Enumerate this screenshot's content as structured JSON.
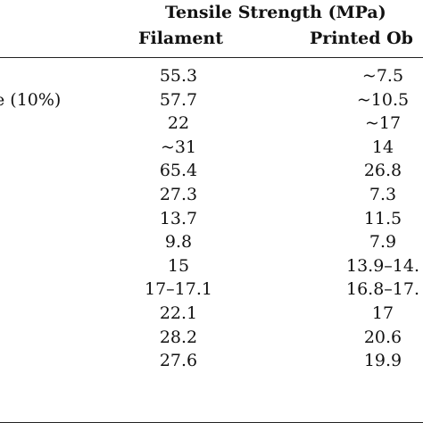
{
  "header": {
    "group_label": "Tensile Strength (MPa)",
    "filament_label": "Filament",
    "printed_label": "Printed Ob"
  },
  "rows": [
    {
      "material": "",
      "filament": "55.3",
      "printed": "~7.5"
    },
    {
      "material": "e (10%)",
      "filament": "57.7",
      "printed": "~10.5"
    },
    {
      "material": "",
      "filament": "22",
      "printed": "~17"
    },
    {
      "material": "",
      "filament": "~31",
      "printed": "14"
    },
    {
      "material": "",
      "filament": "65.4",
      "printed": "26.8"
    },
    {
      "material": "",
      "filament": "27.3",
      "printed": "7.3"
    },
    {
      "material": "",
      "filament": "13.7",
      "printed": "11.5"
    },
    {
      "material": "",
      "filament": "9.8",
      "printed": "7.9"
    },
    {
      "material": "",
      "filament": "15",
      "printed": "13.9–14."
    },
    {
      "material": "",
      "filament": "17–17.1",
      "printed": "16.8–17."
    },
    {
      "material": "",
      "filament": "22.1",
      "printed": "17"
    },
    {
      "material": "",
      "filament": "28.2",
      "printed": "20.6"
    },
    {
      "material": "",
      "filament": "27.6",
      "printed": "19.9"
    }
  ]
}
